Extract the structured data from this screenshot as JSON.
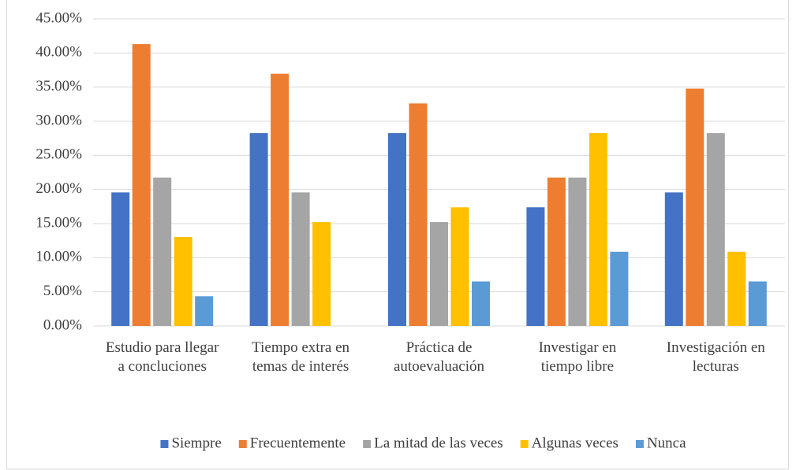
{
  "chart_data": {
    "type": "bar",
    "categories": [
      "Estudio para llegar a concluciones",
      "Tiempo extra en temas de interés",
      "Práctica de autoevaluación",
      "Investigar en tiempo libre",
      "Investigación en lecturas"
    ],
    "series": [
      {
        "name": "Siempre",
        "color": "#4472c4",
        "values": [
          19.57,
          28.26,
          28.26,
          17.39,
          19.57
        ]
      },
      {
        "name": "Frecuentemente",
        "color": "#ed7d31",
        "values": [
          41.3,
          36.96,
          32.61,
          21.74,
          34.78
        ]
      },
      {
        "name": "La mitad de las veces",
        "color": "#a5a5a5",
        "values": [
          21.74,
          19.57,
          15.22,
          21.74,
          28.26
        ]
      },
      {
        "name": "Algunas veces",
        "color": "#ffc000",
        "values": [
          13.04,
          15.22,
          17.39,
          28.26,
          10.87
        ]
      },
      {
        "name": "Nunca",
        "color": "#5b9bd5",
        "values": [
          4.35,
          0,
          6.52,
          10.87,
          6.52
        ]
      }
    ],
    "ylim": [
      0,
      45
    ],
    "yticks": [
      {
        "value": 0,
        "label": "0.00%"
      },
      {
        "value": 5,
        "label": "5.00%"
      },
      {
        "value": 10,
        "label": "10.00%"
      },
      {
        "value": 15,
        "label": "15.00%"
      },
      {
        "value": 20,
        "label": "20.00%"
      },
      {
        "value": 25,
        "label": "25.00%"
      },
      {
        "value": 30,
        "label": "30.00%"
      },
      {
        "value": 35,
        "label": "35.00%"
      },
      {
        "value": 40,
        "label": "40.00%"
      },
      {
        "value": 45,
        "label": "45.00%"
      }
    ],
    "grid": true,
    "legend": "bottom"
  }
}
